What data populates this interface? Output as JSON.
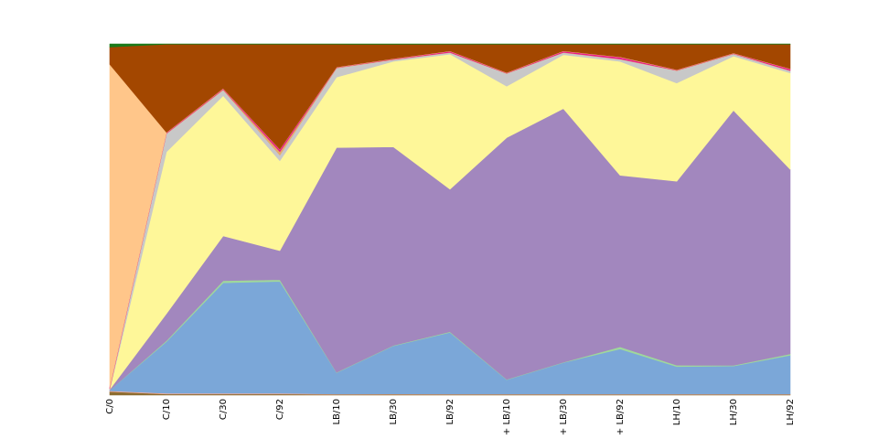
{
  "chart_data": {
    "type": "area",
    "stacked": true,
    "normalized": true,
    "categories": [
      "C/0",
      "C/10",
      "C/30",
      "C/92",
      "LB/10",
      "LB/30",
      "LB/92",
      "+ LB/10",
      "+ LB/30",
      "+ LB/92",
      "LH/10",
      "LH/30",
      "LH/92"
    ],
    "ylim": [
      0,
      1
    ],
    "grid": false,
    "legend": "none",
    "series": [
      {
        "color": "#8c6d31",
        "values": [
          0.01,
          0.003,
          0.003,
          0.003,
          0.002,
          0.002,
          0.002,
          0.002,
          0.002,
          0.002,
          0.002,
          0.002,
          0.002
        ]
      },
      {
        "color": "#fdae9b",
        "values": [
          0.002,
          0.002,
          0.002,
          0.002,
          0.001,
          0.001,
          0.001,
          0.001,
          0.001,
          0.001,
          0.001,
          0.001,
          0.001
        ]
      },
      {
        "color": "#7ba7d8",
        "values": [
          0.002,
          0.148,
          0.316,
          0.32,
          0.061,
          0.118,
          0.175,
          0.041,
          0.09,
          0.129,
          0.08,
          0.08,
          0.111
        ]
      },
      {
        "color": "#9fd89b",
        "values": [
          0.0,
          0.003,
          0.006,
          0.005,
          0.001,
          0.001,
          0.002,
          0.001,
          0.001,
          0.006,
          0.004,
          0.002,
          0.004
        ]
      },
      {
        "color": "#a287be",
        "values": [
          0.002,
          0.077,
          0.128,
          0.083,
          0.642,
          0.488,
          0.405,
          0.691,
          0.725,
          0.491,
          0.536,
          0.729,
          0.528
        ]
      },
      {
        "color": "#fef799",
        "values": [
          0.0,
          0.463,
          0.401,
          0.257,
          0.201,
          0.21,
          0.384,
          0.147,
          0.154,
          0.326,
          0.286,
          0.155,
          0.276
        ]
      },
      {
        "color": "#c8c8c8",
        "values": [
          0.002,
          0.052,
          0.016,
          0.016,
          0.026,
          0.004,
          0.004,
          0.036,
          0.006,
          0.006,
          0.036,
          0.006,
          0.006
        ]
      },
      {
        "color": "#e6a96a",
        "values": [
          0.001,
          0.001,
          0.002,
          0.01,
          0.001,
          0.001,
          0.001,
          0.001,
          0.001,
          0.001,
          0.001,
          0.001,
          0.001
        ]
      },
      {
        "color": "#e8198c",
        "values": [
          0.003,
          0.002,
          0.002,
          0.006,
          0.001,
          0.001,
          0.003,
          0.001,
          0.003,
          0.005,
          0.001,
          0.001,
          0.004
        ]
      },
      {
        "color": "#ffc68a",
        "values": [
          0.92,
          0.001,
          0.001,
          0.001,
          0.001,
          0.001,
          0.001,
          0.001,
          0.001,
          0.001,
          0.001,
          0.001,
          0.001
        ]
      },
      {
        "color": "#a34700",
        "values": [
          0.049,
          0.252,
          0.126,
          0.3,
          0.065,
          0.035,
          0.019,
          0.081,
          0.019,
          0.036,
          0.074,
          0.025,
          0.07
        ]
      },
      {
        "color": "#1a7a1a",
        "values": [
          0.009,
          0.001,
          0.001,
          0.001,
          0.001,
          0.001,
          0.001,
          0.001,
          0.001,
          0.001,
          0.001,
          0.001,
          0.001
        ]
      }
    ]
  }
}
